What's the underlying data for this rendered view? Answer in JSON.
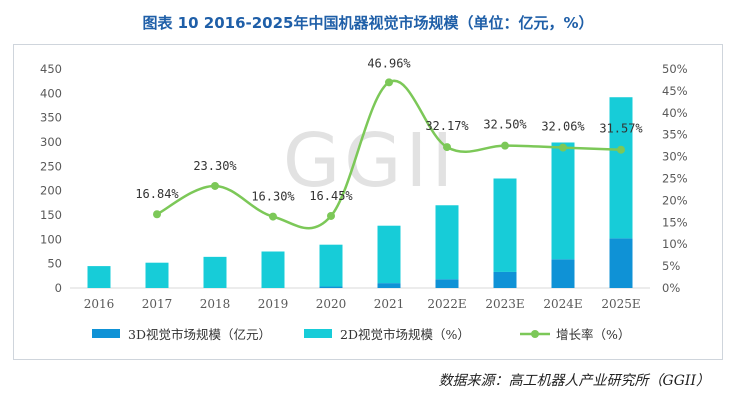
{
  "chart_data": {
    "type": "bar",
    "title": "图表 10 2016-2025年中国机器视觉市场规模（单位：亿元，%）",
    "categories": [
      "2016",
      "2017",
      "2018",
      "2019",
      "2020",
      "2021",
      "2022E",
      "2023E",
      "2024E",
      "2025E"
    ],
    "stacked": true,
    "series": [
      {
        "name": "3D视觉市场规模（亿元）",
        "type": "bar",
        "axis": "left",
        "color": "#0f92d6",
        "values": [
          0,
          0,
          0,
          0,
          3,
          10,
          18,
          33,
          59,
          102
        ]
      },
      {
        "name": "2D视觉市场规模（%）",
        "type": "bar",
        "axis": "left",
        "color": "#17ccd8",
        "values": [
          45,
          52,
          64,
          75,
          86,
          118,
          152,
          192,
          240,
          290
        ]
      },
      {
        "name": "增长率（%）",
        "type": "line",
        "axis": "right",
        "color": "#7cc858",
        "values": [
          null,
          16.84,
          23.3,
          16.3,
          16.45,
          46.96,
          32.17,
          32.5,
          32.06,
          31.57
        ],
        "labels": [
          "",
          "16.84%",
          "23.30%",
          "16.30%",
          "16.45%",
          "46.96%",
          "32.17%",
          "32.50%",
          "32.06%",
          "31.57%"
        ]
      }
    ],
    "y_left": {
      "min": 0,
      "max": 450,
      "step": 50,
      "tick_labels": [
        "0",
        "50",
        "100",
        "150",
        "200",
        "250",
        "300",
        "350",
        "400",
        "450"
      ]
    },
    "y_right": {
      "min": 0,
      "max": 50,
      "step": 5,
      "tick_labels": [
        "0%",
        "5%",
        "10%",
        "15%",
        "20%",
        "25%",
        "30%",
        "35%",
        "40%",
        "45%",
        "50%"
      ]
    },
    "legend_position": "bottom",
    "grid": false
  },
  "watermark": "GGII",
  "source": {
    "prefix": "数据来源：",
    "text": "高工机器人产业研究所（GGII）"
  },
  "colors": {
    "title": "#1f5fa8",
    "axis_text": "#595959",
    "axis_line": "#d9d9d9"
  }
}
